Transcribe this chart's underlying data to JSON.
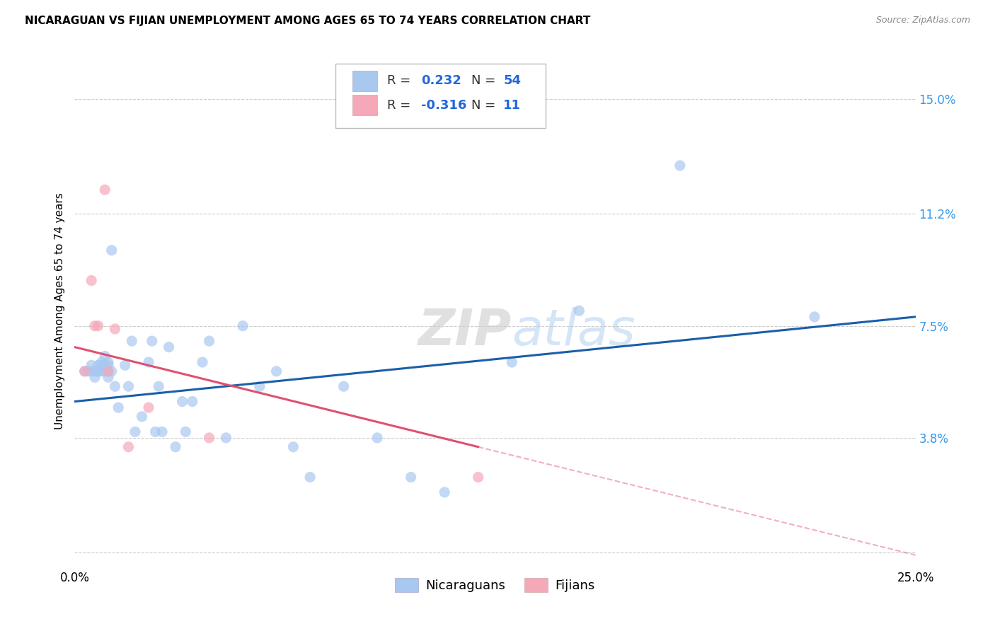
{
  "title": "NICARAGUAN VS FIJIAN UNEMPLOYMENT AMONG AGES 65 TO 74 YEARS CORRELATION CHART",
  "source": "Source: ZipAtlas.com",
  "ylabel": "Unemployment Among Ages 65 to 74 years",
  "xlim": [
    0.0,
    0.25
  ],
  "ylim": [
    -0.005,
    0.165
  ],
  "xtick_positions": [
    0.0,
    0.05,
    0.1,
    0.15,
    0.2,
    0.25
  ],
  "xticklabels": [
    "0.0%",
    "",
    "",
    "",
    "",
    "25.0%"
  ],
  "yticks_right": [
    0.0,
    0.038,
    0.075,
    0.112,
    0.15
  ],
  "ytick_right_labels": [
    "",
    "3.8%",
    "7.5%",
    "11.2%",
    "15.0%"
  ],
  "nicaraguan_color": "#A8C8F0",
  "fijian_color": "#F4A8B8",
  "nicaraguan_line_color": "#1A5FA8",
  "fijian_line_color": "#E05070",
  "watermark": "ZIPatlas",
  "background_color": "#ffffff",
  "scatter_alpha": 0.7,
  "scatter_size": 120,
  "nicaraguan_x": [
    0.003,
    0.004,
    0.005,
    0.005,
    0.006,
    0.006,
    0.007,
    0.007,
    0.007,
    0.008,
    0.008,
    0.008,
    0.009,
    0.009,
    0.009,
    0.01,
    0.01,
    0.01,
    0.01,
    0.011,
    0.011,
    0.012,
    0.013,
    0.015,
    0.016,
    0.017,
    0.018,
    0.02,
    0.022,
    0.023,
    0.024,
    0.025,
    0.026,
    0.028,
    0.03,
    0.032,
    0.033,
    0.035,
    0.038,
    0.04,
    0.045,
    0.05,
    0.055,
    0.06,
    0.065,
    0.07,
    0.08,
    0.09,
    0.1,
    0.11,
    0.13,
    0.15,
    0.18,
    0.22
  ],
  "nicaraguan_y": [
    0.06,
    0.06,
    0.062,
    0.06,
    0.058,
    0.06,
    0.06,
    0.062,
    0.06,
    0.06,
    0.062,
    0.063,
    0.06,
    0.062,
    0.065,
    0.058,
    0.06,
    0.062,
    0.063,
    0.1,
    0.06,
    0.055,
    0.048,
    0.062,
    0.055,
    0.07,
    0.04,
    0.045,
    0.063,
    0.07,
    0.04,
    0.055,
    0.04,
    0.068,
    0.035,
    0.05,
    0.04,
    0.05,
    0.063,
    0.07,
    0.038,
    0.075,
    0.055,
    0.06,
    0.035,
    0.025,
    0.055,
    0.038,
    0.025,
    0.02,
    0.063,
    0.08,
    0.128,
    0.078
  ],
  "fijian_x": [
    0.003,
    0.005,
    0.006,
    0.007,
    0.009,
    0.01,
    0.012,
    0.016,
    0.022,
    0.04,
    0.12
  ],
  "fijian_y": [
    0.06,
    0.09,
    0.075,
    0.075,
    0.12,
    0.06,
    0.074,
    0.035,
    0.048,
    0.038,
    0.025
  ],
  "nic_line_x0": 0.0,
  "nic_line_y0": 0.05,
  "nic_line_x1": 0.25,
  "nic_line_y1": 0.078,
  "fij_line_x0": 0.0,
  "fij_line_y0": 0.068,
  "fij_line_x1": 0.12,
  "fij_line_y1": 0.035
}
